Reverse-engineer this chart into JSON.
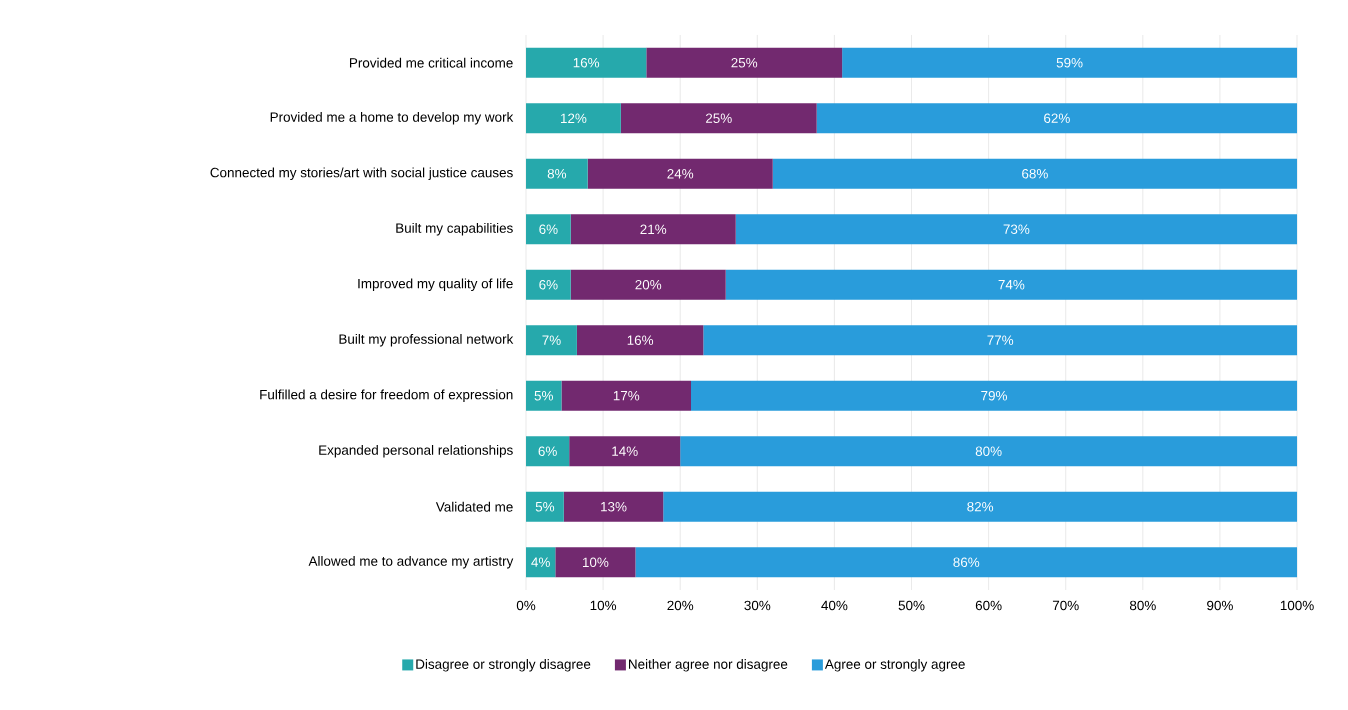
{
  "chart_data": {
    "type": "bar",
    "orientation": "horizontal",
    "stacked": true,
    "categories": [
      "Provided me critical income",
      "Provided me a home to develop my work",
      "Connected my stories/art with social justice causes",
      "Built my capabilities",
      "Improved my quality of life",
      "Built my professional network",
      "Fulfilled a desire for freedom of expression",
      "Expanded personal relationships",
      "Validated me",
      "Allowed me to advance my artistry"
    ],
    "series": [
      {
        "name": "Disagree or strongly disagree",
        "color": "#26a9ac",
        "values": [
          15.6,
          12.3,
          8,
          5.8,
          5.8,
          6.6,
          4.6,
          5.6,
          4.9,
          3.8
        ],
        "value_labels": [
          "16%",
          "12%",
          "8%",
          "6%",
          "6%",
          "7%",
          "5%",
          "6%",
          "5%",
          "4%"
        ]
      },
      {
        "name": "Neither agree nor disagree",
        "color": "#72296f",
        "values": [
          25.4,
          25.4,
          24,
          21.4,
          20.1,
          16.4,
          16.8,
          14.4,
          12.9,
          10.4
        ],
        "value_labels": [
          "25%",
          "25%",
          "24%",
          "21%",
          "20%",
          "16%",
          "17%",
          "14%",
          "13%",
          "10%"
        ]
      },
      {
        "name": "Agree or strongly agree",
        "color": "#299cdb",
        "values": [
          59.0,
          62.3,
          68,
          72.8,
          74.1,
          77.0,
          78.6,
          80.0,
          82.2,
          85.8
        ],
        "value_labels": [
          "59%",
          "62%",
          "68%",
          "73%",
          "74%",
          "77%",
          "79%",
          "80%",
          "82%",
          "86%"
        ]
      }
    ],
    "xlim": [
      0,
      100
    ],
    "xticks": [
      {
        "value": 0,
        "label": "0%"
      },
      {
        "value": 10,
        "label": "10%"
      },
      {
        "value": 20,
        "label": "20%"
      },
      {
        "value": 30,
        "label": "30%"
      },
      {
        "value": 40,
        "label": "40%"
      },
      {
        "value": 50,
        "label": "50%"
      },
      {
        "value": 60,
        "label": "60%"
      },
      {
        "value": 70,
        "label": "70%"
      },
      {
        "value": 80,
        "label": "80%"
      },
      {
        "value": 90,
        "label": "90%"
      },
      {
        "value": 100,
        "label": "100%"
      }
    ],
    "grid": "x",
    "legend": "bottom"
  }
}
